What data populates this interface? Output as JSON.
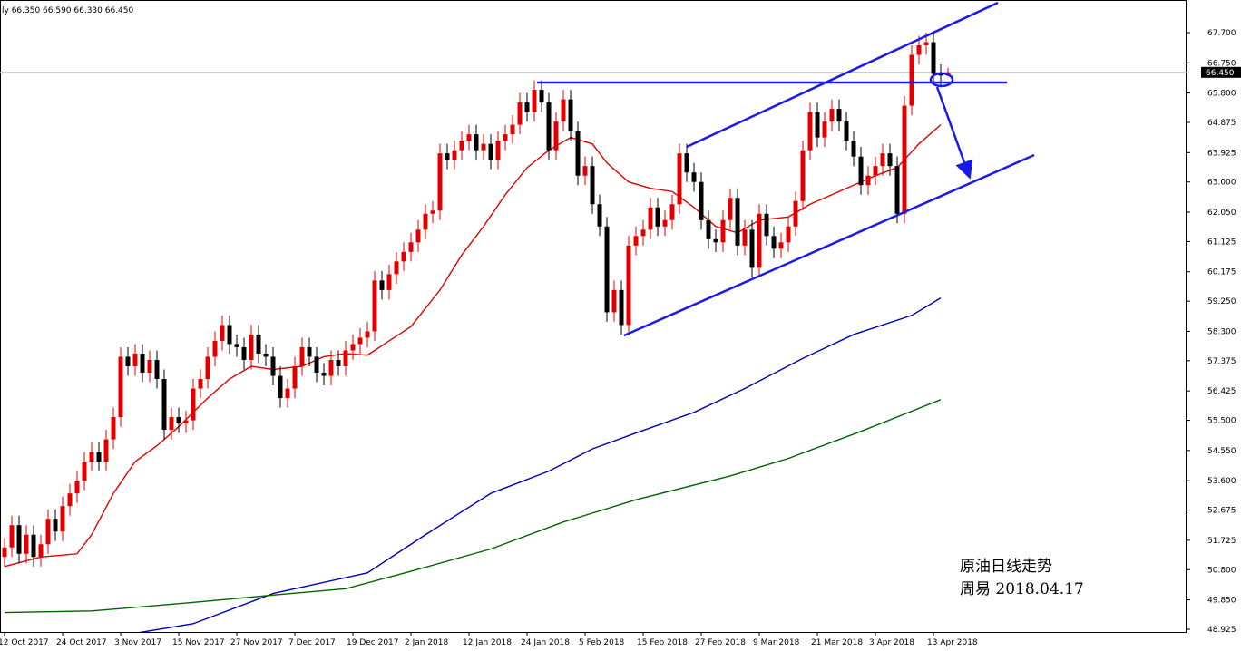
{
  "chart_data": {
    "type": "candlestick",
    "header": "ly  66.350 66.590 66.330 66.450",
    "annotations": [
      "原油日线走势",
      "周易  2018.04.17"
    ],
    "current_price": {
      "value": 66.45,
      "label": "66.450"
    },
    "bull_color": "#e00000",
    "bear_color": "#000000",
    "categories": [
      "12 Oct 2017",
      null,
      null,
      null,
      null,
      null,
      null,
      null,
      "24 Oct 2017",
      null,
      null,
      null,
      null,
      null,
      null,
      null,
      "3 Nov 2017",
      null,
      null,
      null,
      null,
      null,
      null,
      null,
      "15 Nov 2017",
      null,
      null,
      null,
      null,
      null,
      null,
      null,
      "27 Nov 2017",
      null,
      null,
      null,
      null,
      null,
      null,
      null,
      "7 Dec 2017",
      null,
      null,
      null,
      null,
      null,
      null,
      null,
      "19 Dec 2017",
      null,
      null,
      null,
      null,
      null,
      null,
      null,
      "2 Jan 2018",
      null,
      null,
      null,
      null,
      null,
      null,
      null,
      "12 Jan 2018",
      null,
      null,
      null,
      null,
      null,
      null,
      null,
      "24 Jan 2018",
      null,
      null,
      null,
      null,
      null,
      null,
      null,
      "5 Feb 2018",
      null,
      null,
      null,
      null,
      null,
      null,
      null,
      "15 Feb 2018",
      null,
      null,
      null,
      null,
      null,
      null,
      null,
      "27 Feb 2018",
      null,
      null,
      null,
      null,
      null,
      null,
      null,
      "9 Mar 2018",
      null,
      null,
      null,
      null,
      null,
      null,
      null,
      "21 Mar 2018",
      null,
      null,
      null,
      null,
      null,
      null,
      null,
      "3 Apr 2018",
      null,
      null,
      null,
      null,
      null,
      null,
      null,
      "13 Apr 2018",
      null,
      null
    ],
    "open": [
      51.2,
      51.5,
      52.2,
      51.3,
      51.9,
      51.2,
      51.6,
      52.4,
      52.0,
      52.8,
      53.2,
      53.6,
      54.2,
      54.5,
      54.2,
      54.9,
      55.6,
      57.5,
      57.2,
      57.6,
      57.0,
      57.4,
      56.8,
      55.2,
      55.6,
      55.4,
      55.5,
      56.5,
      56.8,
      57.5,
      58.0,
      58.5,
      57.9,
      57.8,
      57.4,
      58.2,
      57.6,
      57.5,
      56.9,
      56.2,
      56.5,
      57.2,
      57.8,
      57.5,
      57.0,
      56.9,
      57.4,
      57.2,
      57.7,
      57.9,
      58.1,
      58.3,
      59.9,
      59.6,
      60.1,
      60.5,
      60.8,
      61.1,
      61.5,
      62.0,
      62.1,
      63.9,
      63.7,
      64.0,
      64.3,
      64.5,
      64.0,
      64.2,
      63.7,
      64.3,
      64.5,
      64.8,
      65.5,
      65.2,
      65.9,
      65.5,
      64.0,
      64.9,
      65.6,
      64.6,
      63.2,
      63.5,
      62.3,
      61.6,
      58.9,
      59.6,
      58.5,
      61.0,
      61.3,
      61.5,
      62.2,
      61.6,
      61.8,
      62.3,
      63.9,
      63.3,
      63.0,
      61.8,
      61.2,
      61.1,
      61.8,
      62.5,
      61.0,
      61.5,
      60.3,
      62.0,
      61.3,
      60.9,
      61.1,
      61.6,
      62.4,
      64.0,
      65.2,
      64.4,
      64.9,
      65.3,
      64.9,
      64.3,
      63.8,
      62.9,
      63.2,
      63.5,
      63.9,
      63.5,
      62.0,
      65.4,
      67.0,
      67.3,
      67.4,
      66.4,
      66.35
    ],
    "high": [
      51.8,
      52.5,
      52.5,
      52.2,
      52.2,
      51.9,
      52.7,
      52.7,
      53.1,
      53.5,
      53.9,
      54.5,
      54.8,
      54.8,
      55.2,
      55.9,
      57.8,
      57.8,
      57.9,
      57.9,
      57.7,
      57.7,
      57.1,
      55.9,
      55.9,
      55.8,
      56.8,
      57.1,
      57.8,
      58.3,
      58.8,
      58.8,
      58.2,
      58.1,
      58.5,
      58.5,
      57.9,
      57.8,
      57.2,
      56.8,
      57.5,
      58.1,
      58.1,
      57.8,
      57.3,
      57.7,
      57.7,
      58.0,
      58.2,
      58.4,
      58.6,
      60.2,
      60.2,
      60.4,
      60.8,
      61.1,
      61.4,
      61.8,
      62.3,
      62.4,
      64.2,
      64.2,
      64.3,
      64.6,
      64.8,
      64.8,
      64.5,
      64.5,
      64.6,
      64.8,
      65.1,
      65.8,
      65.8,
      66.2,
      66.2,
      65.8,
      65.2,
      65.9,
      65.9,
      64.9,
      63.8,
      63.8,
      62.6,
      61.9,
      59.9,
      59.9,
      61.3,
      61.6,
      61.8,
      62.5,
      62.5,
      62.1,
      62.6,
      64.2,
      64.2,
      63.6,
      63.3,
      62.1,
      61.5,
      62.1,
      62.8,
      62.8,
      61.8,
      61.8,
      62.3,
      62.3,
      61.6,
      61.4,
      61.9,
      62.7,
      64.3,
      65.5,
      65.5,
      65.2,
      65.6,
      65.6,
      65.2,
      64.6,
      64.1,
      63.5,
      63.8,
      64.2,
      64.2,
      63.8,
      65.7,
      67.3,
      67.6,
      67.7,
      67.7,
      66.7,
      66.59
    ],
    "low": [
      50.9,
      51.2,
      51.0,
      51.0,
      50.9,
      50.9,
      51.3,
      51.7,
      51.7,
      52.5,
      52.9,
      53.3,
      53.9,
      53.9,
      53.9,
      54.6,
      55.3,
      56.9,
      56.9,
      56.7,
      56.7,
      56.5,
      54.9,
      54.9,
      55.1,
      55.1,
      55.2,
      56.2,
      56.5,
      57.2,
      57.7,
      57.6,
      57.5,
      57.1,
      57.1,
      57.3,
      57.2,
      56.6,
      55.9,
      55.9,
      56.2,
      56.9,
      57.2,
      56.7,
      56.6,
      56.6,
      56.9,
      56.9,
      57.4,
      57.6,
      57.8,
      58.0,
      59.3,
      59.3,
      59.8,
      60.2,
      60.5,
      60.8,
      61.2,
      61.7,
      61.8,
      63.4,
      63.4,
      63.7,
      64.0,
      63.7,
      63.7,
      63.4,
      63.4,
      64.0,
      64.2,
      64.5,
      64.9,
      64.9,
      65.2,
      63.7,
      63.7,
      64.6,
      64.3,
      62.9,
      62.9,
      62.0,
      61.3,
      58.6,
      58.6,
      58.2,
      58.2,
      60.7,
      61.0,
      61.2,
      61.3,
      61.3,
      61.5,
      62.0,
      63.0,
      62.7,
      61.5,
      60.9,
      60.8,
      60.8,
      61.5,
      60.7,
      60.7,
      60.0,
      60.0,
      61.0,
      60.6,
      60.6,
      60.8,
      61.3,
      62.1,
      63.7,
      64.1,
      64.1,
      64.6,
      64.6,
      64.0,
      63.5,
      62.6,
      62.6,
      62.9,
      63.2,
      63.2,
      61.7,
      61.7,
      65.1,
      66.7,
      67.0,
      66.1,
      66.05,
      66.33
    ],
    "close": [
      51.5,
      52.2,
      51.3,
      51.9,
      51.2,
      51.6,
      52.4,
      52.0,
      52.8,
      53.2,
      53.6,
      54.2,
      54.5,
      54.2,
      54.9,
      55.6,
      57.5,
      57.2,
      57.6,
      57.0,
      57.4,
      56.8,
      55.2,
      55.6,
      55.4,
      55.5,
      56.5,
      56.8,
      57.5,
      58.0,
      58.5,
      57.9,
      57.8,
      57.4,
      58.2,
      57.6,
      57.5,
      56.9,
      56.2,
      56.5,
      57.2,
      57.8,
      57.5,
      57.0,
      56.9,
      57.4,
      57.2,
      57.7,
      57.9,
      58.1,
      58.3,
      59.9,
      59.6,
      60.1,
      60.5,
      60.8,
      61.1,
      61.5,
      62.0,
      62.1,
      63.9,
      63.7,
      64.0,
      64.3,
      64.5,
      64.0,
      64.2,
      63.7,
      64.3,
      64.5,
      64.8,
      65.5,
      65.2,
      65.9,
      65.5,
      64.0,
      64.9,
      65.6,
      64.6,
      63.2,
      63.5,
      62.3,
      61.6,
      58.9,
      59.6,
      58.5,
      61.0,
      61.3,
      61.5,
      62.2,
      61.6,
      61.8,
      62.3,
      63.9,
      63.3,
      63.0,
      61.8,
      61.2,
      61.1,
      61.8,
      62.5,
      61.0,
      61.5,
      60.3,
      62.0,
      61.3,
      60.9,
      61.1,
      61.6,
      62.4,
      64.0,
      65.2,
      64.4,
      64.9,
      65.3,
      64.9,
      64.3,
      63.8,
      62.9,
      63.2,
      63.5,
      63.9,
      63.5,
      62.0,
      65.4,
      67.0,
      67.3,
      67.4,
      66.4,
      66.35,
      66.45
    ],
    "overlays": [
      {
        "color": "#e00000",
        "x": [
          0,
          5,
          10,
          12,
          15,
          18,
          21,
          24,
          28,
          31,
          34,
          37,
          41,
          44,
          47,
          50,
          53,
          56,
          60,
          63,
          66,
          69,
          72,
          75,
          78,
          81,
          83,
          86,
          89,
          92,
          95,
          98,
          101,
          104,
          108,
          111,
          114,
          117,
          120,
          123,
          126,
          129
        ],
        "values": [
          50.9,
          51.2,
          51.3,
          51.9,
          53.2,
          54.2,
          54.7,
          55.3,
          56.2,
          56.8,
          57.2,
          57.1,
          57.2,
          57.5,
          57.6,
          57.55,
          58.0,
          58.45,
          59.6,
          60.7,
          61.6,
          62.6,
          63.45,
          64.0,
          64.4,
          64.2,
          63.6,
          63.0,
          62.8,
          62.7,
          62.2,
          61.6,
          61.4,
          61.8,
          61.9,
          62.3,
          62.6,
          62.9,
          63.2,
          63.45,
          64.2,
          64.8
        ]
      },
      {
        "color": "#0000b0",
        "x": [
          18,
          26,
          37,
          50,
          58,
          67,
          75,
          81,
          87,
          95,
          102,
          110,
          117,
          125,
          129
        ],
        "values": [
          48.8,
          49.1,
          50.05,
          50.7,
          51.9,
          53.2,
          53.9,
          54.6,
          55.1,
          55.75,
          56.5,
          57.45,
          58.2,
          58.8,
          59.35
        ]
      },
      {
        "color": "#006400",
        "x": [
          0,
          12,
          25,
          37,
          47,
          56,
          67,
          77,
          87,
          100,
          108,
          118,
          129
        ],
        "values": [
          49.45,
          49.5,
          49.75,
          50.0,
          50.2,
          50.75,
          51.45,
          52.3,
          53.0,
          53.75,
          54.3,
          55.15,
          56.15
        ]
      }
    ],
    "ylim": [
      48.925,
      67.7
    ],
    "yticks": [
      {
        "value": 67.7,
        "label": "67.700"
      },
      {
        "value": 66.75,
        "label": "66.750"
      },
      {
        "value": 65.8,
        "label": "65.800"
      },
      {
        "value": 64.875,
        "label": "64.875"
      },
      {
        "value": 63.925,
        "label": "63.925"
      },
      {
        "value": 63.0,
        "label": "63.000"
      },
      {
        "value": 62.05,
        "label": "62.050"
      },
      {
        "value": 61.125,
        "label": "61.125"
      },
      {
        "value": 60.175,
        "label": "60.175"
      },
      {
        "value": 59.25,
        "label": "59.250"
      },
      {
        "value": 58.3,
        "label": "58.300"
      },
      {
        "value": 57.375,
        "label": "57.375"
      },
      {
        "value": 56.425,
        "label": "56.425"
      },
      {
        "value": 55.5,
        "label": "55.500"
      },
      {
        "value": 54.55,
        "label": "54.550"
      },
      {
        "value": 53.6,
        "label": "53.600"
      },
      {
        "value": 52.675,
        "label": "52.675"
      },
      {
        "value": 51.725,
        "label": "51.725"
      },
      {
        "value": 50.8,
        "label": "50.800"
      },
      {
        "value": 49.85,
        "label": "49.850"
      },
      {
        "value": 48.925,
        "label": "48.925"
      }
    ]
  }
}
